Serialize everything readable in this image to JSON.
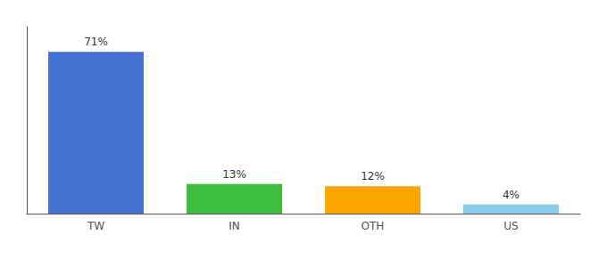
{
  "chart_data": {
    "type": "bar",
    "categories": [
      "TW",
      "IN",
      "OTH",
      "US"
    ],
    "values": [
      71,
      13,
      12,
      4
    ],
    "value_labels": [
      "71%",
      "13%",
      "12%",
      "4%"
    ],
    "colors": [
      "#4472D3",
      "#3DBF3D",
      "#FFA500",
      "#87CEEB"
    ],
    "ylim": [
      0,
      82
    ],
    "tick_labels": "x",
    "grid": false,
    "data_labels": true
  }
}
